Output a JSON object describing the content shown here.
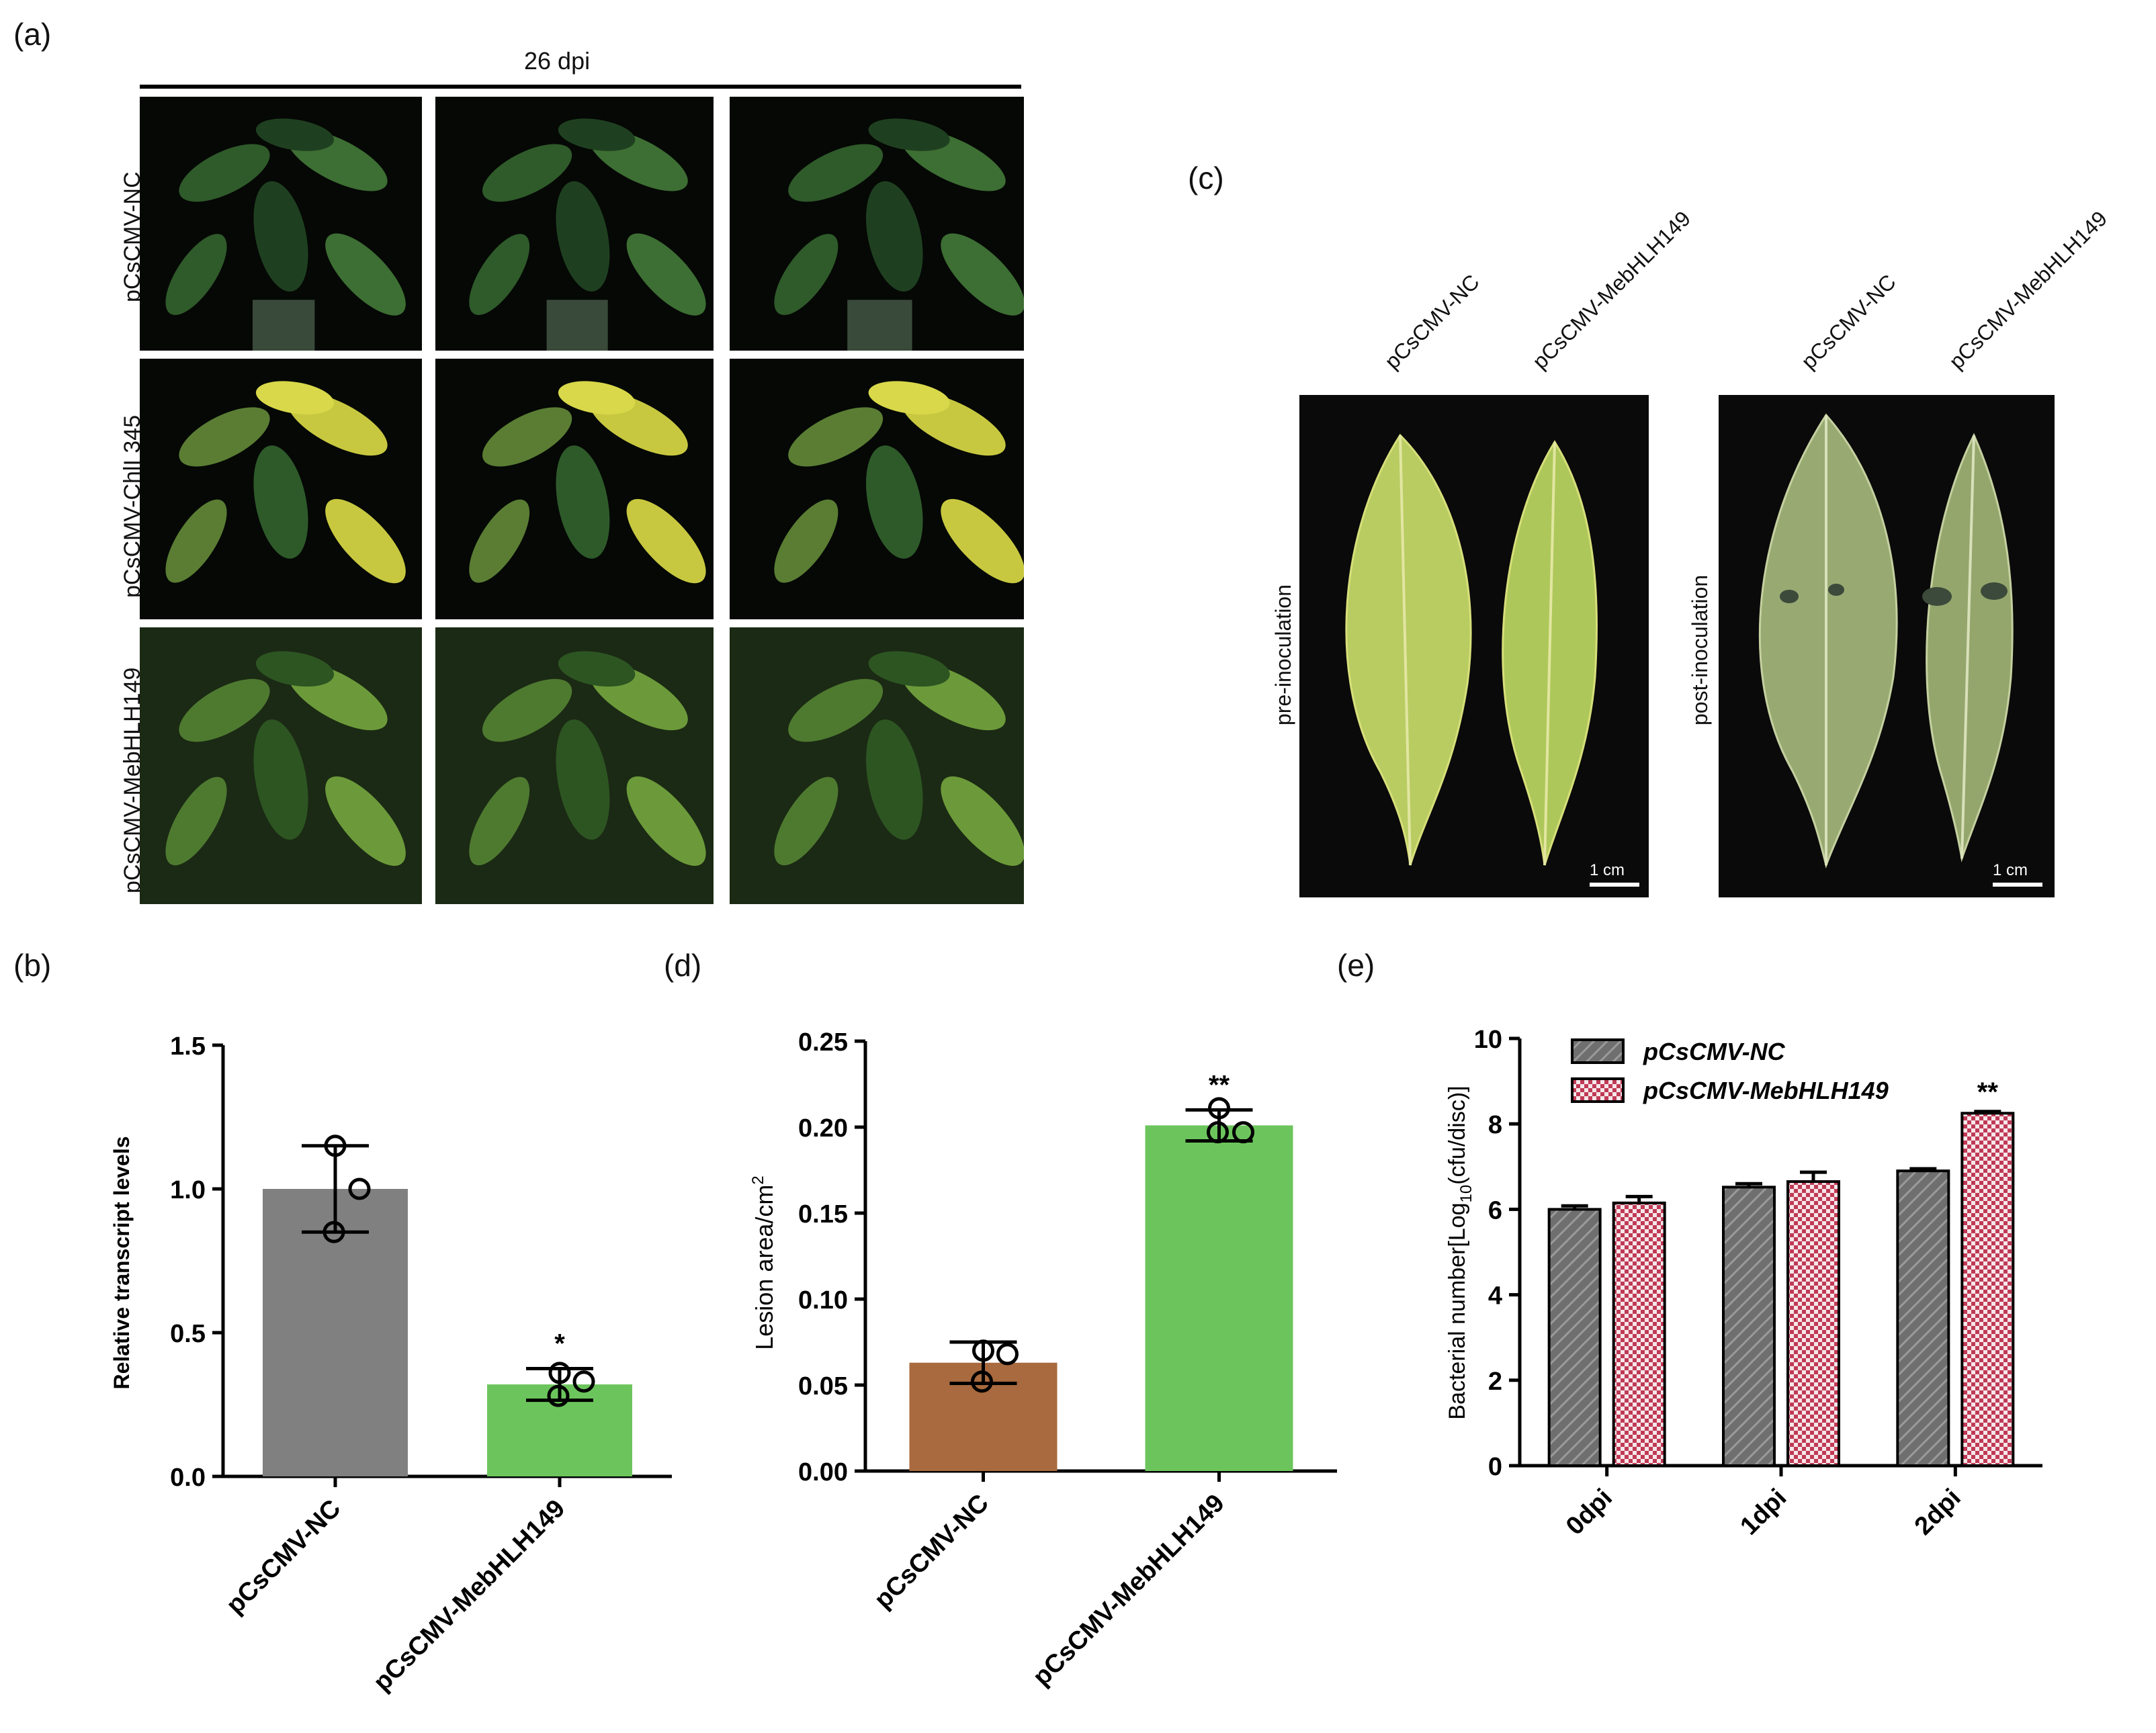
{
  "panel_a": {
    "label": "(a)",
    "time_label": "26 dpi",
    "rows": [
      {
        "label": "pCsCMV-NC"
      },
      {
        "label": "pCsCMV-ChlI 345"
      },
      {
        "label": "pCsCMV-MebHLH149"
      }
    ]
  },
  "panel_c": {
    "label": "(c)",
    "columns": [
      "pCsCMV-NC",
      "pCsCMV-MebHLH149",
      "pCsCMV-NC",
      "pCsCMV-MebHLH149"
    ],
    "photo1_label": "pre-inoculation",
    "photo2_label": "post-inoculation",
    "scale_label": "1 cm"
  },
  "chart_data": [
    {
      "panel": "(b)",
      "type": "bar",
      "categories": [
        "pCsCMV-NC",
        "pCsCMV-MebHLH149"
      ],
      "values": [
        1.0,
        0.32
      ],
      "errors": [
        0.15,
        0.055
      ],
      "points": [
        [
          1.15,
          1.0,
          0.85
        ],
        [
          0.36,
          0.33,
          0.28
        ]
      ],
      "colors": [
        "#808080",
        "#6cc55c"
      ],
      "significance": [
        "",
        "*"
      ],
      "ylabel": "Relative transcript levels",
      "ylim": [
        0,
        1.5
      ],
      "yticks": [
        "0.0",
        "0.5",
        "1.0",
        "1.5"
      ]
    },
    {
      "panel": "(d)",
      "type": "bar",
      "categories": [
        "pCsCMV-NC",
        "pCsCMV-MebHLH149"
      ],
      "values": [
        0.063,
        0.201
      ],
      "errors": [
        0.012,
        0.009
      ],
      "points": [
        [
          0.07,
          0.068,
          0.052
        ],
        [
          0.211,
          0.197,
          0.197
        ]
      ],
      "colors": [
        "#a86a3e",
        "#6cc55c"
      ],
      "significance": [
        "",
        "**"
      ],
      "ylabel": "Lesion area/cm",
      "ylabel_sup": "2",
      "ylim": [
        0,
        0.25
      ],
      "yticks": [
        "0.00",
        "0.05",
        "0.10",
        "0.15",
        "0.20",
        "0.25"
      ]
    },
    {
      "panel": "(e)",
      "type": "bar",
      "categories": [
        "0dpi",
        "1dpi",
        "2dpi"
      ],
      "series": [
        {
          "name": "pCsCMV-NC",
          "values": [
            6.0,
            6.52,
            6.9
          ],
          "errors": [
            0.08,
            0.08,
            0.05
          ],
          "color": "#737373"
        },
        {
          "name": "pCsCMV-MebHLH149",
          "values": [
            6.15,
            6.65,
            8.25
          ],
          "errors": [
            0.15,
            0.22,
            0.04
          ],
          "color": "#c03a55"
        }
      ],
      "significance": [
        "",
        "",
        "**"
      ],
      "ylabel_pre": "Bacterial number[Log",
      "ylabel_sub": "10",
      "ylabel_post": "(cfu/disc)]",
      "ylim": [
        0,
        10
      ],
      "yticks": [
        "0",
        "2",
        "4",
        "6",
        "8",
        "10"
      ]
    }
  ]
}
